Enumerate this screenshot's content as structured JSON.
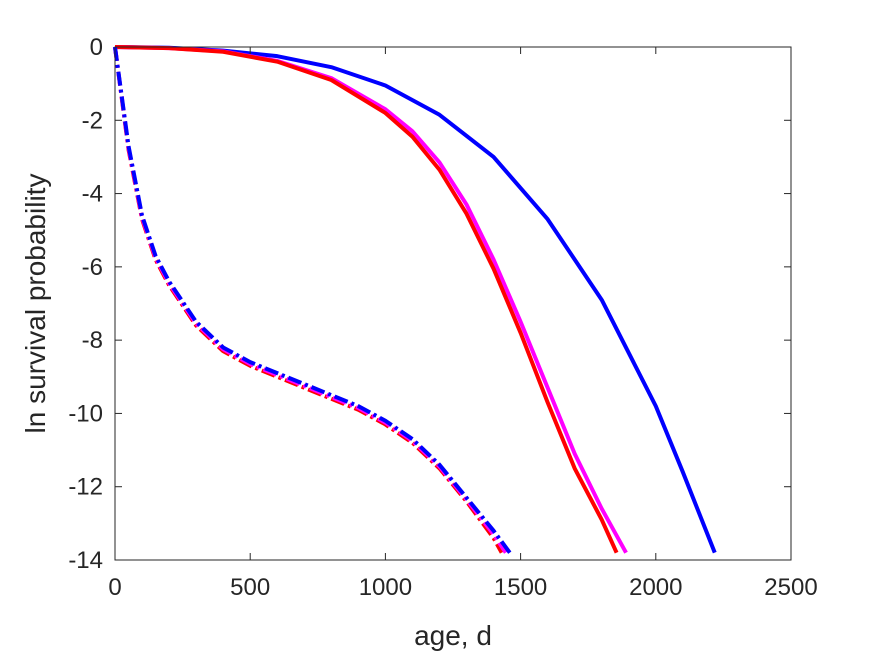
{
  "chart_data": {
    "type": "line",
    "title": "",
    "xlabel": "age, d",
    "ylabel": "ln survival probability",
    "xlim": [
      0,
      2500
    ],
    "ylim": [
      -14,
      0
    ],
    "xticks": [
      0,
      500,
      1000,
      1500,
      2000,
      2500
    ],
    "yticks": [
      0,
      -2,
      -4,
      -6,
      -8,
      -10,
      -12,
      -14
    ],
    "grid": false,
    "legend": "none",
    "series": [
      {
        "color": "#0000ff",
        "style": "solid",
        "x": [
          0,
          200,
          400,
          600,
          800,
          1000,
          1200,
          1400,
          1600,
          1800,
          2000,
          2100,
          2218
        ],
        "y": [
          0,
          -0.02,
          -0.1,
          -0.25,
          -0.55,
          -1.05,
          -1.85,
          -3.0,
          -4.7,
          -6.9,
          -9.8,
          -11.6,
          -13.8
        ]
      },
      {
        "color": "#ff00ff",
        "style": "solid",
        "x": [
          0,
          200,
          400,
          600,
          800,
          1000,
          1100,
          1200,
          1300,
          1400,
          1500,
          1600,
          1700,
          1800,
          1890
        ],
        "y": [
          0,
          -0.03,
          -0.12,
          -0.38,
          -0.85,
          -1.7,
          -2.3,
          -3.15,
          -4.3,
          -5.8,
          -7.5,
          -9.3,
          -11.1,
          -12.6,
          -13.8
        ]
      },
      {
        "color": "#ff0000",
        "style": "solid",
        "x": [
          0,
          200,
          400,
          600,
          800,
          1000,
          1100,
          1200,
          1300,
          1400,
          1500,
          1600,
          1700,
          1800,
          1855
        ],
        "y": [
          0,
          -0.03,
          -0.13,
          -0.4,
          -0.9,
          -1.8,
          -2.45,
          -3.35,
          -4.55,
          -6.05,
          -7.8,
          -9.7,
          -11.5,
          -12.9,
          -13.8
        ]
      },
      {
        "color": "#ff0000",
        "style": "dashdot",
        "x": [
          0,
          50,
          100,
          150,
          200,
          300,
          400,
          500,
          600,
          700,
          800,
          900,
          1000,
          1100,
          1200,
          1300,
          1400,
          1430
        ],
        "y": [
          0,
          -2.8,
          -4.7,
          -5.8,
          -6.5,
          -7.6,
          -8.3,
          -8.7,
          -9.0,
          -9.3,
          -9.6,
          -9.9,
          -10.3,
          -10.8,
          -11.5,
          -12.4,
          -13.4,
          -13.8
        ]
      },
      {
        "color": "#ff00ff",
        "style": "dashdot",
        "x": [
          0,
          50,
          100,
          150,
          200,
          300,
          400,
          500,
          600,
          700,
          800,
          900,
          1000,
          1100,
          1200,
          1300,
          1400,
          1445
        ],
        "y": [
          0,
          -2.75,
          -4.65,
          -5.75,
          -6.45,
          -7.55,
          -8.25,
          -8.65,
          -8.95,
          -9.25,
          -9.55,
          -9.85,
          -10.25,
          -10.75,
          -11.45,
          -12.35,
          -13.3,
          -13.8
        ]
      },
      {
        "color": "#0000ff",
        "style": "dashdot",
        "x": [
          0,
          50,
          100,
          150,
          200,
          300,
          400,
          500,
          600,
          700,
          800,
          900,
          1000,
          1100,
          1200,
          1300,
          1400,
          1460
        ],
        "y": [
          0,
          -2.7,
          -4.6,
          -5.7,
          -6.4,
          -7.5,
          -8.2,
          -8.6,
          -8.9,
          -9.2,
          -9.5,
          -9.8,
          -10.2,
          -10.7,
          -11.4,
          -12.3,
          -13.2,
          -13.8
        ]
      }
    ]
  }
}
